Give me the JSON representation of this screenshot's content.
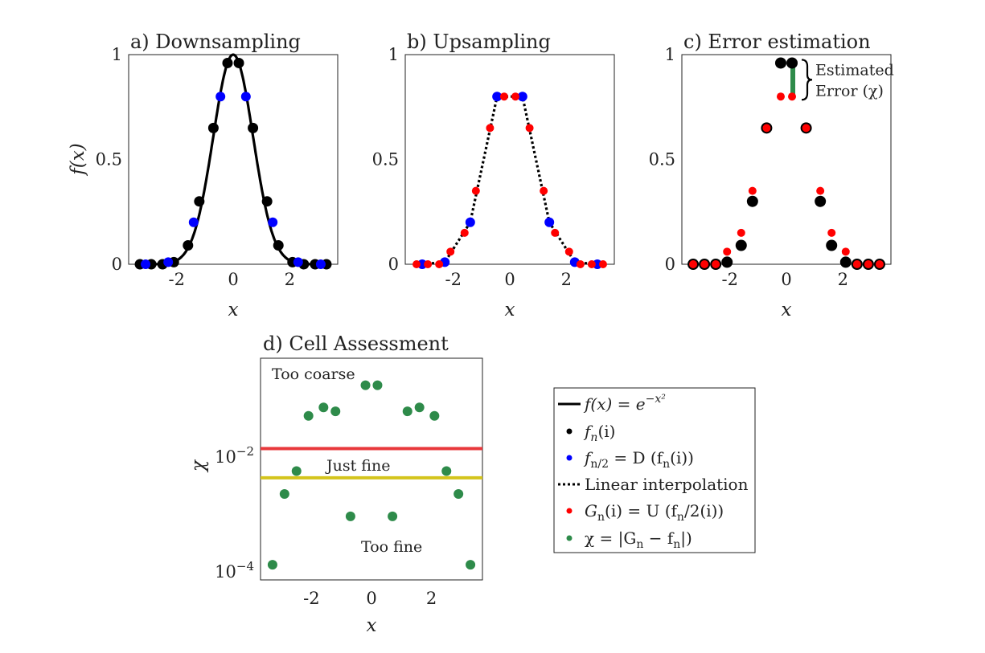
{
  "colors": {
    "black": "#000000",
    "blue": "#0000ff",
    "red": "#ff0000",
    "green": "#2e8b4a",
    "coarse_line": "#e8383b",
    "fine_line": "#d4c41c"
  },
  "chart_data": [
    {
      "type": "line",
      "title": "a) Downsampling",
      "xlabel": "x",
      "ylabel": "f(x)",
      "xlim": [
        -3.7,
        3.7
      ],
      "ylim": [
        0,
        1
      ],
      "xticks": [
        "-2",
        "0",
        "2"
      ],
      "yticks": [
        "0",
        "0.5",
        "1"
      ],
      "series": [
        {
          "name": "f(x) = e^{-x^2}",
          "style": "curve",
          "function": "exp(-x^2)",
          "xrange": [
            -3.3,
            3.3
          ]
        },
        {
          "name": "f_n(i)",
          "style": "dots",
          "color": "black",
          "x": [
            -3.3,
            -2.9,
            -2.5,
            -2.1,
            -1.6,
            -1.2,
            -0.7,
            -0.2,
            0.2,
            0.7,
            1.2,
            1.6,
            2.1,
            2.5,
            2.9,
            3.3
          ],
          "y": [
            0,
            0,
            0,
            0.01,
            0.09,
            0.3,
            0.65,
            0.96,
            0.96,
            0.65,
            0.3,
            0.09,
            0.01,
            0,
            0,
            0
          ]
        },
        {
          "name": "f_{n/2} = D(f_n(i))",
          "style": "dots",
          "color": "blue",
          "x": [
            -3.1,
            -2.3,
            -1.4,
            -0.45,
            0.45,
            1.4,
            2.3,
            3.1
          ],
          "y": [
            0,
            0.01,
            0.2,
            0.8,
            0.8,
            0.2,
            0.01,
            0
          ]
        }
      ]
    },
    {
      "type": "line",
      "title": "b) Upsampling",
      "xlabel": "x",
      "ylabel": "",
      "xlim": [
        -3.7,
        3.7
      ],
      "ylim": [
        0,
        1
      ],
      "xticks": [
        "-2",
        "0",
        "2"
      ],
      "yticks": [
        "0",
        "0.5",
        "1"
      ],
      "series": [
        {
          "name": "Linear interpolation",
          "style": "dotted",
          "color": "black",
          "x": [
            -3.1,
            -2.3,
            -1.4,
            -0.45,
            0.45,
            1.4,
            2.3,
            3.1
          ],
          "y": [
            0,
            0.01,
            0.2,
            0.8,
            0.8,
            0.2,
            0.01,
            0
          ]
        },
        {
          "name": "f_{n/2} = D(f_n(i))",
          "style": "dots",
          "color": "blue",
          "x": [
            -3.1,
            -2.3,
            -1.4,
            -0.45,
            0.45,
            1.4,
            2.3,
            3.1
          ],
          "y": [
            0,
            0.01,
            0.2,
            0.8,
            0.8,
            0.2,
            0.01,
            0
          ]
        },
        {
          "name": "G_n(i) = U(f_n/2(i))",
          "style": "dots",
          "color": "red",
          "x": [
            -3.3,
            -2.9,
            -2.5,
            -2.1,
            -1.6,
            -1.2,
            -0.7,
            -0.2,
            0.2,
            0.7,
            1.2,
            1.6,
            2.1,
            2.5,
            2.9,
            3.3
          ],
          "y": [
            0,
            0,
            0,
            0.06,
            0.15,
            0.35,
            0.65,
            0.8,
            0.8,
            0.65,
            0.35,
            0.15,
            0.06,
            0,
            0,
            0
          ]
        }
      ]
    },
    {
      "type": "scatter",
      "title": "c) Error estimation",
      "xlabel": "x",
      "ylabel": "",
      "xlim": [
        -3.7,
        3.7
      ],
      "ylim": [
        0,
        1
      ],
      "xticks": [
        "-2",
        "0",
        "2"
      ],
      "yticks": [
        "0",
        "0.5",
        "1"
      ],
      "annotation": {
        "line1": "Estimated",
        "line2": "Error (χ)",
        "x": 0.2,
        "y_low": 0.8,
        "y_high": 0.96
      },
      "series": [
        {
          "name": "f_n(i)",
          "style": "bigdots",
          "color": "black",
          "x": [
            -3.3,
            -2.9,
            -2.5,
            -2.1,
            -1.6,
            -1.2,
            -0.7,
            -0.2,
            0.2,
            0.7,
            1.2,
            1.6,
            2.1,
            2.5,
            2.9,
            3.3
          ],
          "y": [
            0,
            0,
            0,
            0.01,
            0.09,
            0.3,
            0.65,
            0.96,
            0.96,
            0.65,
            0.3,
            0.09,
            0.01,
            0,
            0,
            0
          ]
        },
        {
          "name": "G_n(i)",
          "style": "dots",
          "color": "red",
          "x": [
            -3.3,
            -2.9,
            -2.5,
            -2.1,
            -1.6,
            -1.2,
            -0.7,
            -0.2,
            0.2,
            0.7,
            1.2,
            1.6,
            2.1,
            2.5,
            2.9,
            3.3
          ],
          "y": [
            0,
            0,
            0,
            0.06,
            0.15,
            0.35,
            0.65,
            0.8,
            0.8,
            0.65,
            0.35,
            0.15,
            0.06,
            0,
            0,
            0
          ]
        }
      ]
    },
    {
      "type": "scatter",
      "title": "d) Cell Assessment",
      "xlabel": "x",
      "ylabel": "χ",
      "xlim": [
        -3.7,
        3.7
      ],
      "ylim_log10": [
        -4.15,
        -0.3
      ],
      "yscale": "log",
      "xticks": [
        "-2",
        "0",
        "2"
      ],
      "yticks": [
        {
          "exp": -2,
          "label": "10",
          "sup": "−2"
        },
        {
          "exp": -4,
          "label": "10",
          "sup": "−4"
        }
      ],
      "thresholds": [
        {
          "name": "coarse",
          "value": 0.0135,
          "color": "coarse_line"
        },
        {
          "name": "fine",
          "value": 0.0042,
          "color": "fine_line"
        }
      ],
      "region_labels": {
        "coarse": "Too coarse",
        "just": "Just fine",
        "fine": "Too fine"
      },
      "series": [
        {
          "name": "χ = |G_n − f_n|",
          "style": "dots",
          "color": "green",
          "x": [
            -3.3,
            -2.9,
            -2.5,
            -2.1,
            -1.6,
            -1.2,
            -0.7,
            -0.2,
            0.2,
            0.7,
            1.2,
            1.6,
            2.1,
            2.5,
            2.9,
            3.3
          ],
          "y": [
            0.00013,
            0.0022,
            0.0055,
            0.05,
            0.07,
            0.06,
            0.0009,
            0.17,
            0.17,
            0.0009,
            0.06,
            0.07,
            0.05,
            0.0055,
            0.0022,
            0.00013
          ]
        }
      ]
    }
  ],
  "legend": {
    "items": [
      {
        "key": "curve",
        "text": "f(x) = e",
        "sup": "−x²"
      },
      {
        "key": "fn",
        "text": "f",
        "sub": "n",
        "rest": "(i)"
      },
      {
        "key": "fn2",
        "text": "f",
        "sub": "n/2",
        "rest": " = D (f",
        "sub2": "n",
        "rest2": "(i))"
      },
      {
        "key": "interp",
        "text": "Linear interpolation"
      },
      {
        "key": "gn",
        "text": "G",
        "sub": "n",
        "rest": "(i) = U (f",
        "sub2": "n",
        "rest2": "/2(i))"
      },
      {
        "key": "chi",
        "text": "χ = |G",
        "sub": "n",
        "rest": " − f",
        "sub2": "n",
        "rest2": "|)"
      }
    ]
  }
}
